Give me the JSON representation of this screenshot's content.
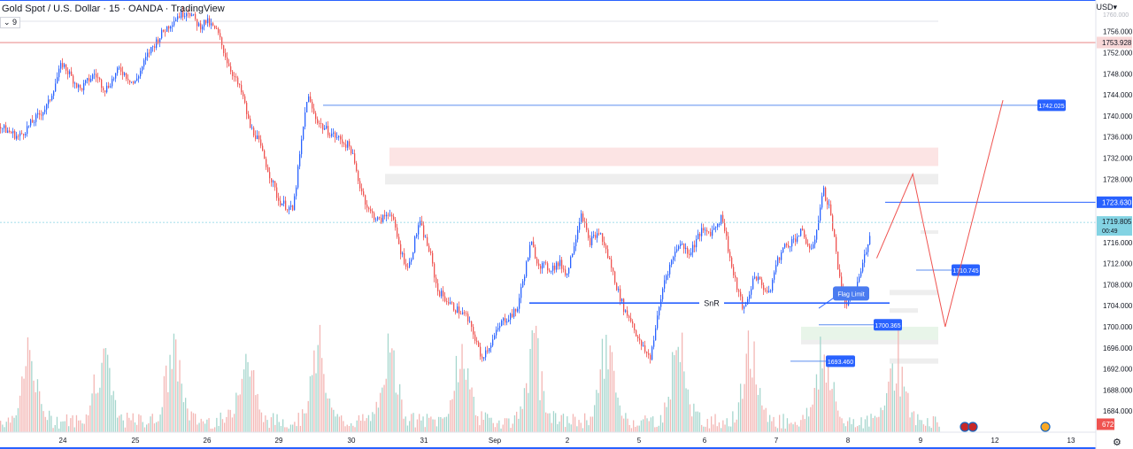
{
  "header": {
    "title": "Gold Spot / U.S. Dollar · 15 · OANDA · TradingView",
    "interval_box": "9",
    "currency": "USD"
  },
  "axis": {
    "y_labels": [
      "1756.000",
      "1752.000",
      "1748.000",
      "1744.000",
      "1740.000",
      "1736.000",
      "1732.000",
      "1728.000",
      "1716.000",
      "1712.000",
      "1708.000",
      "1704.000",
      "1700.000",
      "1696.000",
      "1692.000",
      "1688.000",
      "1684.000"
    ],
    "x_labels": [
      "24",
      "25",
      "26",
      "29",
      "30",
      "31",
      "Sep",
      "2",
      "5",
      "6",
      "7",
      "8",
      "9",
      "12",
      "13"
    ]
  },
  "price_badges": {
    "level_top": "1753.928",
    "level_right": "1723.630",
    "current": "1719.805",
    "countdown": "00:49",
    "volume": "672"
  },
  "annotations": {
    "snr": "SnR",
    "flag_limit": "Flag Limit",
    "labels": [
      "1742.025",
      "1710.745",
      "1700.365",
      "1693.460"
    ]
  },
  "colors": {
    "up": "#26a69a",
    "down": "#ef5350",
    "candle_up_body": "#2962ff",
    "label_blue": "#2962ff",
    "current_price": "#83d3e3",
    "level_line": "#e57373"
  },
  "chart_data": {
    "type": "candlestick",
    "ylim": [
      1680,
      1762
    ],
    "days": [
      "24",
      "25",
      "26",
      "29",
      "30",
      "31",
      "Sep",
      "2",
      "5",
      "6",
      "7",
      "8",
      "9"
    ],
    "path_days": [
      0,
      0.4,
      0.8,
      1.0,
      1.25,
      1.45,
      1.6,
      1.8,
      2.0,
      2.2,
      2.4,
      2.6,
      2.75,
      2.9,
      3.0,
      3.15,
      3.3,
      3.5,
      3.6,
      3.7,
      4.0,
      4.2,
      4.4,
      4.5,
      4.6,
      5.0,
      5.1,
      5.25,
      5.4,
      5.55,
      5.7,
      5.8,
      5.95,
      6.1,
      6.2,
      6.4,
      6.6,
      6.75,
      6.8,
      6.95,
      7.1,
      7.3,
      7.5,
      7.6,
      7.75,
      7.9,
      8.0,
      8.2,
      8.3,
      8.45,
      8.6,
      8.7,
      8.8,
      8.9,
      9.0,
      9.15,
      9.35,
      9.55,
      9.7,
      9.85,
      10.0,
      10.15,
      10.3,
      10.45,
      10.5,
      10.6,
      10.8,
      10.9,
      11.0,
      11.1,
      11.25,
      11.4,
      11.55,
      11.65,
      11.75,
      11.85,
      12.0,
      12.1,
      12.2
    ],
    "path_prices": [
      1739,
      1736,
      1742,
      1750,
      1745,
      1748,
      1745,
      1749,
      1746,
      1752,
      1756,
      1759,
      1760,
      1757,
      1758,
      1756,
      1750,
      1744,
      1738,
      1736,
      1724,
      1722,
      1744,
      1740,
      1738,
      1734,
      1728,
      1722,
      1720,
      1722,
      1714,
      1711,
      1720,
      1714,
      1707,
      1704,
      1702,
      1697,
      1694,
      1697,
      1701,
      1703,
      1716,
      1712,
      1711,
      1712,
      1710,
      1722,
      1716,
      1718,
      1712,
      1707,
      1703,
      1701,
      1697,
      1694,
      1709,
      1716,
      1714,
      1718,
      1718,
      1721,
      1710,
      1703,
      1705,
      1710,
      1706,
      1712,
      1715,
      1716,
      1718,
      1714,
      1726,
      1722,
      1712,
      1704,
      1707,
      1712,
      1718
    ],
    "current_price": 1719.805,
    "levels": [
      {
        "price": 1753.928,
        "label": "1753.928"
      },
      {
        "price": 1742.025,
        "label": "1742.025"
      },
      {
        "price": 1723.63,
        "label": "1723.630"
      },
      {
        "price": 1710.745,
        "label": "1710.745"
      },
      {
        "price": 1704.5,
        "label": "SnR"
      },
      {
        "price": 1700.365,
        "label": "1700.365"
      },
      {
        "price": 1693.46,
        "label": "1693.460"
      }
    ],
    "zones": [
      {
        "from": 1730.5,
        "to": 1734,
        "color": "#fce4e4"
      },
      {
        "from": 1727,
        "to": 1729,
        "color": "#eeeeee"
      },
      {
        "from": 1697,
        "to": 1700,
        "color": "#e8f5e9"
      },
      {
        "from": 1706,
        "to": 1707,
        "color": "#eeeeee"
      },
      {
        "from": 1693,
        "to": 1694,
        "color": "#eeeeee"
      }
    ],
    "projection": [
      [
        12.3,
        1713
      ],
      [
        12.8,
        1729
      ],
      [
        13.25,
        1700
      ],
      [
        14.05,
        1743
      ]
    ]
  }
}
